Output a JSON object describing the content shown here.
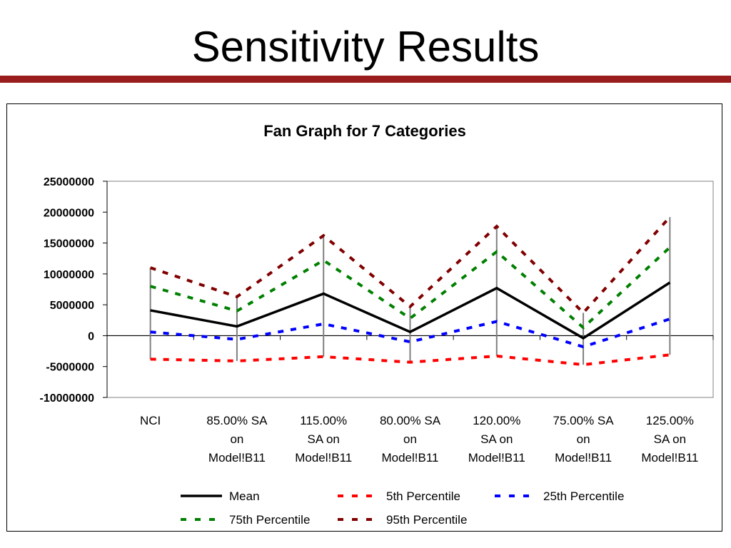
{
  "slide": {
    "title": "Sensitivity Results",
    "accent_color": "#9a1d1d"
  },
  "chart_data": {
    "type": "line",
    "title": "Fan Graph for 7 Categories",
    "xlabel": "",
    "ylabel": "",
    "ylim": [
      -10000000,
      25000000
    ],
    "yticks": [
      "25000000",
      "20000000",
      "15000000",
      "10000000",
      "5000000",
      "0",
      "-5000000",
      "-10000000"
    ],
    "categories": [
      [
        "NCI"
      ],
      [
        "85.00% SA",
        "on",
        "Model!B11"
      ],
      [
        "115.00%",
        "SA on",
        "Model!B11"
      ],
      [
        "80.00% SA",
        "on",
        "Model!B11"
      ],
      [
        "120.00%",
        "SA on",
        "Model!B11"
      ],
      [
        "75.00% SA",
        "on",
        "Model!B11"
      ],
      [
        "125.00%",
        "SA on",
        "Model!B11"
      ]
    ],
    "grid": false,
    "legend_position": "bottom",
    "series": [
      {
        "name": "Mean",
        "color": "#000000",
        "style": "solid",
        "values": [
          4100000,
          1500000,
          6800000,
          600000,
          7700000,
          -400000,
          8600000
        ]
      },
      {
        "name": "5th Percentile",
        "color": "#ff0000",
        "style": "dashed",
        "values": [
          -3800000,
          -4100000,
          -3400000,
          -4300000,
          -3300000,
          -4700000,
          -3100000
        ]
      },
      {
        "name": "25th Percentile",
        "color": "#0000ff",
        "style": "dashed",
        "values": [
          600000,
          -600000,
          1900000,
          -1000000,
          2300000,
          -1800000,
          2700000
        ]
      },
      {
        "name": "75th Percentile",
        "color": "#008000",
        "style": "dashed",
        "values": [
          8000000,
          4000000,
          12200000,
          2800000,
          13600000,
          1300000,
          14300000
        ]
      },
      {
        "name": "95th Percentile",
        "color": "#800000",
        "style": "dashed",
        "values": [
          11000000,
          6300000,
          16200000,
          4700000,
          17700000,
          3700000,
          19200000
        ]
      }
    ],
    "range_bars": {
      "color": "#808080",
      "highs": [
        11000000,
        6300000,
        16200000,
        4700000,
        17700000,
        3700000,
        19200000
      ],
      "lows": [
        -3800000,
        -4100000,
        -3400000,
        -4300000,
        -3300000,
        -4700000,
        -3100000
      ]
    }
  }
}
